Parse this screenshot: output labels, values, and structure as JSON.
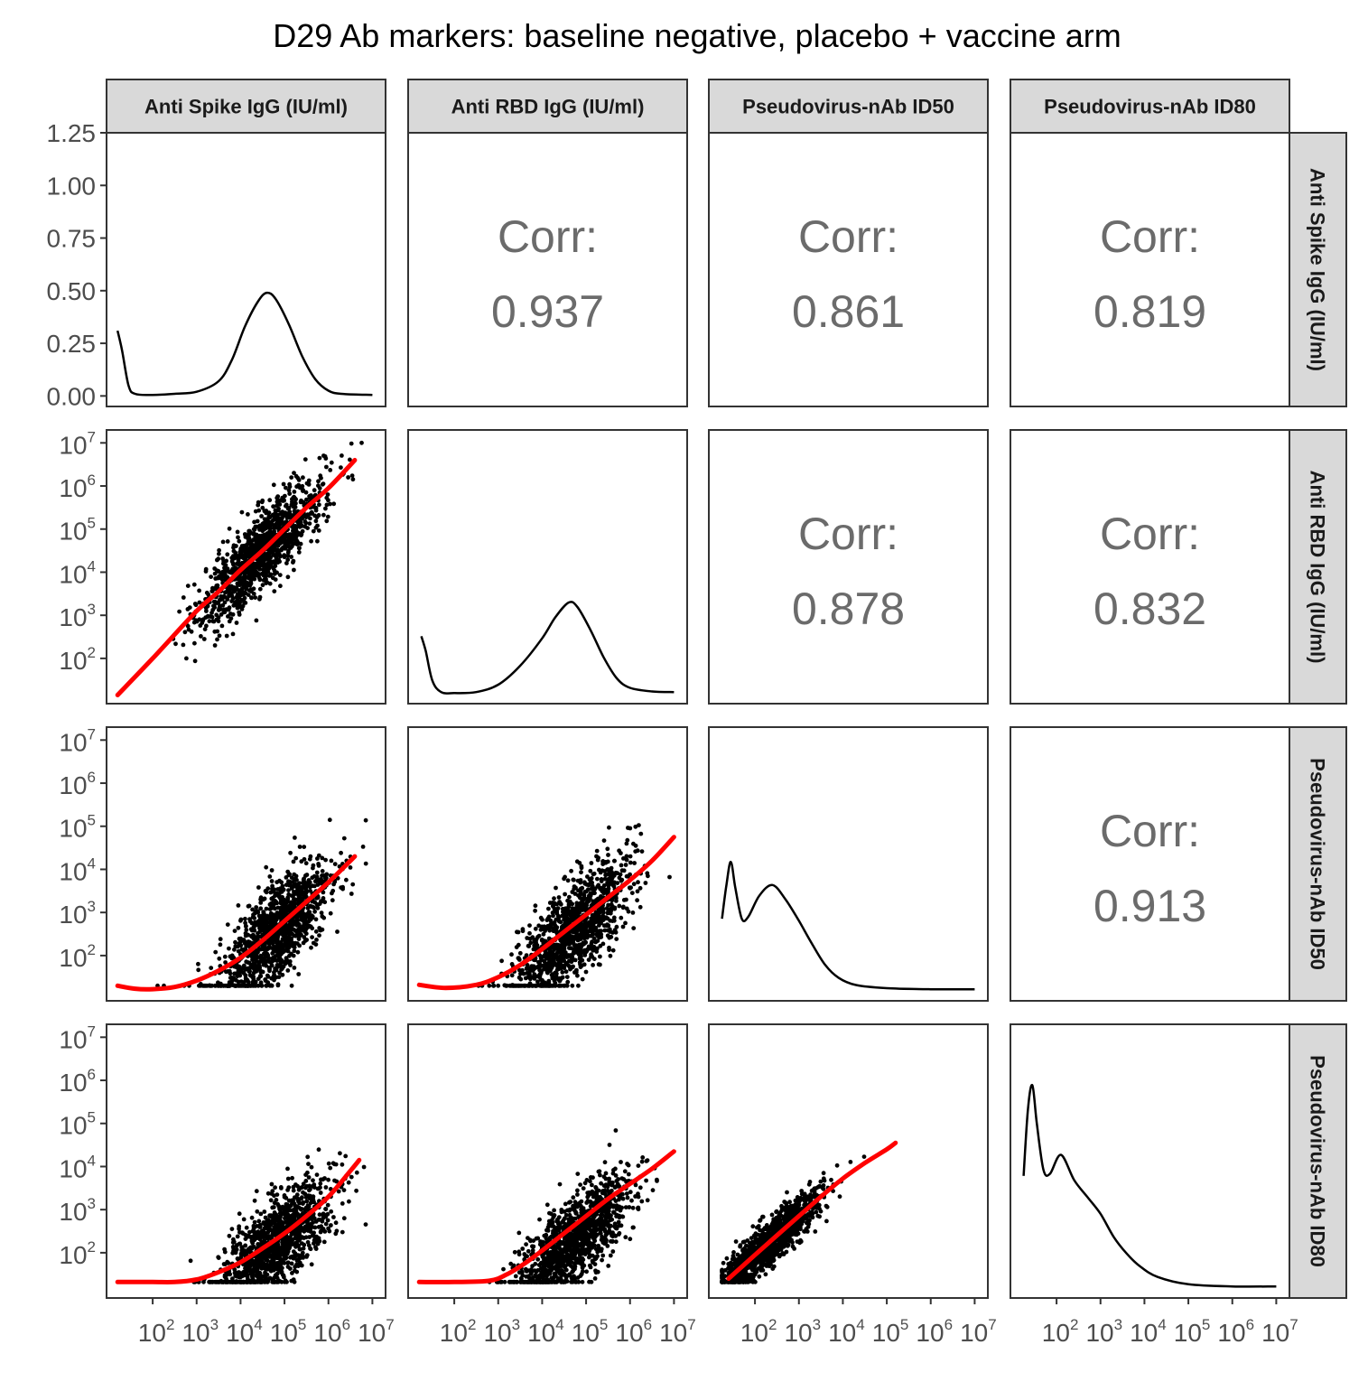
{
  "title": "D29 Ab markers: baseline negative, placebo + vaccine arm",
  "markers": [
    "Anti Spike IgG (IU/ml)",
    "Anti RBD IgG (IU/ml)",
    "Pseudovirus-nAb ID50",
    "Pseudovirus-nAb ID80"
  ],
  "chart_data": {
    "type": "scatter",
    "layout": "pairs-matrix",
    "title": "D29 Ab markers: baseline negative, placebo + vaccine arm",
    "variables": [
      "Anti Spike IgG (IU/ml)",
      "Anti RBD IgG (IU/ml)",
      "Pseudovirus-nAb ID50",
      "Pseudovirus-nAb ID80"
    ],
    "x_axis": {
      "scale": "log10",
      "range_log10": [
        0.95,
        7.3
      ],
      "tick_labels": [
        "10^2",
        "10^3",
        "10^4",
        "10^5",
        "10^6",
        "10^7"
      ],
      "tick_values_log10": [
        2,
        3,
        4,
        5,
        6,
        7
      ]
    },
    "y_axis_scatter": {
      "scale": "log10",
      "range_log10": [
        0.95,
        7.3
      ],
      "tick_labels": [
        "10^2",
        "10^3",
        "10^4",
        "10^5",
        "10^6",
        "10^7"
      ],
      "tick_values_log10": [
        2,
        3,
        4,
        5,
        6,
        7
      ]
    },
    "y_axis_density": {
      "range": [
        -0.05,
        1.25
      ],
      "ticks": [
        0.0,
        0.25,
        0.5,
        0.75,
        1.0,
        1.25
      ],
      "tick_labels": [
        "0.00",
        "0.25",
        "0.50",
        "0.75",
        "1.00",
        "1.25"
      ]
    },
    "correlations": [
      {
        "row": 0,
        "col": 1,
        "label": "Corr:",
        "value": "0.937"
      },
      {
        "row": 0,
        "col": 2,
        "label": "Corr:",
        "value": "0.861"
      },
      {
        "row": 0,
        "col": 3,
        "label": "Corr:",
        "value": "0.819"
      },
      {
        "row": 1,
        "col": 2,
        "label": "Corr:",
        "value": "0.878"
      },
      {
        "row": 1,
        "col": 3,
        "label": "Corr:",
        "value": "0.832"
      },
      {
        "row": 2,
        "col": 3,
        "label": "Corr:",
        "value": "0.913"
      }
    ],
    "densities": [
      {
        "variable": "Anti Spike IgG (IU/ml)",
        "points": [
          [
            1.2,
            0.31
          ],
          [
            1.3,
            0.22
          ],
          [
            1.45,
            0.05
          ],
          [
            1.6,
            0.01
          ],
          [
            2.0,
            0.005
          ],
          [
            2.5,
            0.01
          ],
          [
            3.0,
            0.02
          ],
          [
            3.5,
            0.07
          ],
          [
            3.8,
            0.17
          ],
          [
            4.1,
            0.33
          ],
          [
            4.4,
            0.45
          ],
          [
            4.6,
            0.49
          ],
          [
            4.8,
            0.46
          ],
          [
            5.1,
            0.34
          ],
          [
            5.4,
            0.19
          ],
          [
            5.7,
            0.08
          ],
          [
            6.0,
            0.025
          ],
          [
            6.3,
            0.01
          ],
          [
            7.0,
            0.005
          ]
        ]
      },
      {
        "variable": "Anti RBD IgG (IU/ml)",
        "points": [
          [
            1.25,
            0.27
          ],
          [
            1.35,
            0.2
          ],
          [
            1.5,
            0.06
          ],
          [
            1.7,
            0.005
          ],
          [
            2.0,
            0.0
          ],
          [
            2.5,
            0.005
          ],
          [
            3.0,
            0.04
          ],
          [
            3.5,
            0.13
          ],
          [
            4.0,
            0.26
          ],
          [
            4.3,
            0.36
          ],
          [
            4.6,
            0.43
          ],
          [
            4.8,
            0.41
          ],
          [
            5.1,
            0.3
          ],
          [
            5.4,
            0.17
          ],
          [
            5.7,
            0.07
          ],
          [
            6.0,
            0.025
          ],
          [
            6.5,
            0.008
          ],
          [
            7.0,
            0.005
          ]
        ]
      },
      {
        "variable": "Pseudovirus-nAb ID50",
        "points": [
          [
            1.25,
            0.34
          ],
          [
            1.35,
            0.5
          ],
          [
            1.45,
            0.61
          ],
          [
            1.55,
            0.49
          ],
          [
            1.7,
            0.34
          ],
          [
            1.85,
            0.35
          ],
          [
            2.1,
            0.45
          ],
          [
            2.4,
            0.5
          ],
          [
            2.7,
            0.43
          ],
          [
            3.0,
            0.33
          ],
          [
            3.3,
            0.22
          ],
          [
            3.6,
            0.12
          ],
          [
            3.9,
            0.06
          ],
          [
            4.3,
            0.025
          ],
          [
            5.0,
            0.01
          ],
          [
            6.0,
            0.005
          ],
          [
            7.0,
            0.005
          ]
        ]
      },
      {
        "variable": "Pseudovirus-nAb ID80",
        "points": [
          [
            1.25,
            0.53
          ],
          [
            1.35,
            0.85
          ],
          [
            1.45,
            0.96
          ],
          [
            1.55,
            0.78
          ],
          [
            1.7,
            0.56
          ],
          [
            1.85,
            0.54
          ],
          [
            2.1,
            0.63
          ],
          [
            2.4,
            0.51
          ],
          [
            2.7,
            0.43
          ],
          [
            3.0,
            0.35
          ],
          [
            3.3,
            0.24
          ],
          [
            3.6,
            0.16
          ],
          [
            3.9,
            0.1
          ],
          [
            4.3,
            0.05
          ],
          [
            5.0,
            0.015
          ],
          [
            6.0,
            0.005
          ],
          [
            7.0,
            0.005
          ]
        ]
      }
    ],
    "loess_curves": [
      {
        "x_variable": "Anti Spike IgG (IU/ml)",
        "y_variable": "Anti RBD IgG (IU/ml)",
        "color": "#ff0000",
        "points": [
          [
            1.2,
            1.15
          ],
          [
            2.0,
            2.0
          ],
          [
            3.0,
            3.1
          ],
          [
            3.5,
            3.55
          ],
          [
            4.0,
            4.05
          ],
          [
            4.5,
            4.5
          ],
          [
            5.0,
            5.0
          ],
          [
            5.5,
            5.5
          ],
          [
            6.0,
            5.95
          ],
          [
            6.6,
            6.6
          ]
        ]
      },
      {
        "x_variable": "Anti Spike IgG (IU/ml)",
        "y_variable": "Pseudovirus-nAb ID50",
        "color": "#ff0000",
        "points": [
          [
            1.2,
            1.3
          ],
          [
            1.6,
            1.23
          ],
          [
            2.0,
            1.22
          ],
          [
            2.5,
            1.27
          ],
          [
            3.0,
            1.42
          ],
          [
            3.5,
            1.65
          ],
          [
            4.0,
            1.95
          ],
          [
            4.5,
            2.35
          ],
          [
            5.0,
            2.8
          ],
          [
            5.5,
            3.25
          ],
          [
            6.0,
            3.7
          ],
          [
            6.6,
            4.3
          ]
        ]
      },
      {
        "x_variable": "Anti RBD IgG (IU/ml)",
        "y_variable": "Pseudovirus-nAb ID50",
        "color": "#ff0000",
        "points": [
          [
            1.2,
            1.32
          ],
          [
            1.8,
            1.25
          ],
          [
            2.5,
            1.32
          ],
          [
            3.0,
            1.5
          ],
          [
            3.5,
            1.78
          ],
          [
            4.0,
            2.15
          ],
          [
            4.5,
            2.55
          ],
          [
            5.0,
            2.95
          ],
          [
            5.5,
            3.35
          ],
          [
            6.0,
            3.75
          ],
          [
            6.5,
            4.2
          ],
          [
            7.0,
            4.75
          ]
        ]
      },
      {
        "x_variable": "Anti Spike IgG (IU/ml)",
        "y_variable": "Pseudovirus-nAb ID80",
        "color": "#ff0000",
        "points": [
          [
            1.2,
            1.32
          ],
          [
            2.0,
            1.32
          ],
          [
            2.5,
            1.32
          ],
          [
            3.0,
            1.38
          ],
          [
            3.5,
            1.55
          ],
          [
            4.0,
            1.78
          ],
          [
            4.5,
            2.1
          ],
          [
            5.0,
            2.45
          ],
          [
            5.5,
            2.85
          ],
          [
            6.0,
            3.3
          ],
          [
            6.5,
            3.9
          ],
          [
            6.7,
            4.15
          ]
        ]
      },
      {
        "x_variable": "Anti RBD IgG (IU/ml)",
        "y_variable": "Pseudovirus-nAb ID80",
        "color": "#ff0000",
        "points": [
          [
            1.2,
            1.32
          ],
          [
            2.0,
            1.32
          ],
          [
            2.8,
            1.35
          ],
          [
            3.2,
            1.5
          ],
          [
            3.6,
            1.75
          ],
          [
            4.0,
            2.05
          ],
          [
            4.5,
            2.45
          ],
          [
            5.0,
            2.85
          ],
          [
            5.5,
            3.25
          ],
          [
            6.0,
            3.6
          ],
          [
            6.5,
            3.95
          ],
          [
            7.0,
            4.35
          ]
        ]
      },
      {
        "x_variable": "Pseudovirus-nAb ID50",
        "y_variable": "Pseudovirus-nAb ID80",
        "color": "#ff0000",
        "points": [
          [
            1.4,
            1.4
          ],
          [
            2.0,
            1.95
          ],
          [
            2.5,
            2.4
          ],
          [
            3.0,
            2.85
          ],
          [
            3.5,
            3.3
          ],
          [
            4.0,
            3.72
          ],
          [
            4.5,
            4.08
          ],
          [
            5.0,
            4.4
          ],
          [
            5.2,
            4.55
          ]
        ]
      }
    ],
    "scatter_clouds": [
      {
        "row": 1,
        "col": 0,
        "x_center": 4.5,
        "x_sd": 0.7,
        "slope": 1.0,
        "intercept": 0.0,
        "noise_sd": 0.45,
        "floor": 1.2,
        "n": 1200
      },
      {
        "row": 2,
        "col": 0,
        "x_center": 4.8,
        "x_sd": 0.65,
        "slope": 0.9,
        "intercept": -1.8,
        "noise_sd": 0.55,
        "floor": 1.3,
        "n": 1200
      },
      {
        "row": 2,
        "col": 1,
        "x_center": 4.7,
        "x_sd": 0.65,
        "slope": 0.9,
        "intercept": -1.65,
        "noise_sd": 0.55,
        "floor": 1.3,
        "n": 1200
      },
      {
        "row": 3,
        "col": 0,
        "x_center": 4.8,
        "x_sd": 0.65,
        "slope": 0.85,
        "intercept": -1.85,
        "noise_sd": 0.5,
        "floor": 1.32,
        "n": 1200
      },
      {
        "row": 3,
        "col": 1,
        "x_center": 4.7,
        "x_sd": 0.65,
        "slope": 0.85,
        "intercept": -1.75,
        "noise_sd": 0.5,
        "floor": 1.32,
        "n": 1200
      },
      {
        "row": 3,
        "col": 2,
        "x_center": 2.3,
        "x_sd": 0.6,
        "slope": 0.93,
        "intercept": 0.05,
        "noise_sd": 0.25,
        "floor": 1.32,
        "n": 1200
      }
    ],
    "colors": {
      "points": "#000000",
      "loess": "#ff0000",
      "density": "#000000",
      "corr_text": "#6b6b6b",
      "strip_fill": "#d9d9d9"
    }
  }
}
